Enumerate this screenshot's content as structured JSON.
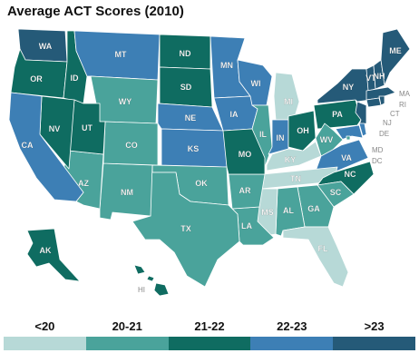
{
  "title": "Average ACT Scores (2010)",
  "legend": [
    {
      "label": "<20",
      "color": "#b7d9d7"
    },
    {
      "label": "20-21",
      "color": "#4aa39b"
    },
    {
      "label": "21-22",
      "color": "#0f6c61"
    },
    {
      "label": "22-23",
      "color": "#3d7fb5"
    },
    {
      "label": ">23",
      "color": "#255a78"
    }
  ],
  "states": [
    {
      "abbr": "WA",
      "cat": ">23"
    },
    {
      "abbr": "OR",
      "cat": "21-22"
    },
    {
      "abbr": "ID",
      "cat": "21-22"
    },
    {
      "abbr": "MT",
      "cat": "22-23"
    },
    {
      "abbr": "WY",
      "cat": "20-21"
    },
    {
      "abbr": "ND",
      "cat": "21-22"
    },
    {
      "abbr": "SD",
      "cat": "21-22"
    },
    {
      "abbr": "NE",
      "cat": "22-23"
    },
    {
      "abbr": "KS",
      "cat": "22-23"
    },
    {
      "abbr": "MN",
      "cat": "22-23"
    },
    {
      "abbr": "IA",
      "cat": "22-23"
    },
    {
      "abbr": "WI",
      "cat": "22-23"
    },
    {
      "abbr": "MI",
      "cat": "<20"
    },
    {
      "abbr": "IL",
      "cat": "20-21"
    },
    {
      "abbr": "IN",
      "cat": "22-23"
    },
    {
      "abbr": "OH",
      "cat": "21-22"
    },
    {
      "abbr": "PA",
      "cat": "21-22"
    },
    {
      "abbr": "NY",
      "cat": ">23"
    },
    {
      "abbr": "VT",
      "cat": ">23"
    },
    {
      "abbr": "NH",
      "cat": ">23"
    },
    {
      "abbr": "ME",
      "cat": ">23"
    },
    {
      "abbr": "MA",
      "cat": ">23"
    },
    {
      "abbr": "RI",
      "cat": ">23"
    },
    {
      "abbr": "CT",
      "cat": ">23"
    },
    {
      "abbr": "NJ",
      "cat": ">23"
    },
    {
      "abbr": "DE",
      "cat": "22-23"
    },
    {
      "abbr": "MD",
      "cat": "22-23"
    },
    {
      "abbr": "DC",
      "cat": "20-21"
    },
    {
      "abbr": "WV",
      "cat": "20-21"
    },
    {
      "abbr": "VA",
      "cat": "22-23"
    },
    {
      "abbr": "KY",
      "cat": "<20"
    },
    {
      "abbr": "TN",
      "cat": "<20"
    },
    {
      "abbr": "NC",
      "cat": "21-22"
    },
    {
      "abbr": "SC",
      "cat": "20-21"
    },
    {
      "abbr": "GA",
      "cat": "20-21"
    },
    {
      "abbr": "AL",
      "cat": "20-21"
    },
    {
      "abbr": "MS",
      "cat": "<20"
    },
    {
      "abbr": "FL",
      "cat": "<20"
    },
    {
      "abbr": "LA",
      "cat": "20-21"
    },
    {
      "abbr": "AR",
      "cat": "20-21"
    },
    {
      "abbr": "MO",
      "cat": "21-22"
    },
    {
      "abbr": "OK",
      "cat": "20-21"
    },
    {
      "abbr": "TX",
      "cat": "20-21"
    },
    {
      "abbr": "NM",
      "cat": "20-21"
    },
    {
      "abbr": "AZ",
      "cat": "20-21"
    },
    {
      "abbr": "CO",
      "cat": "20-21"
    },
    {
      "abbr": "UT",
      "cat": "21-22"
    },
    {
      "abbr": "NV",
      "cat": "21-22"
    },
    {
      "abbr": "CA",
      "cat": "22-23"
    },
    {
      "abbr": "AK",
      "cat": "21-22"
    },
    {
      "abbr": "HI",
      "cat": "21-22"
    }
  ]
}
